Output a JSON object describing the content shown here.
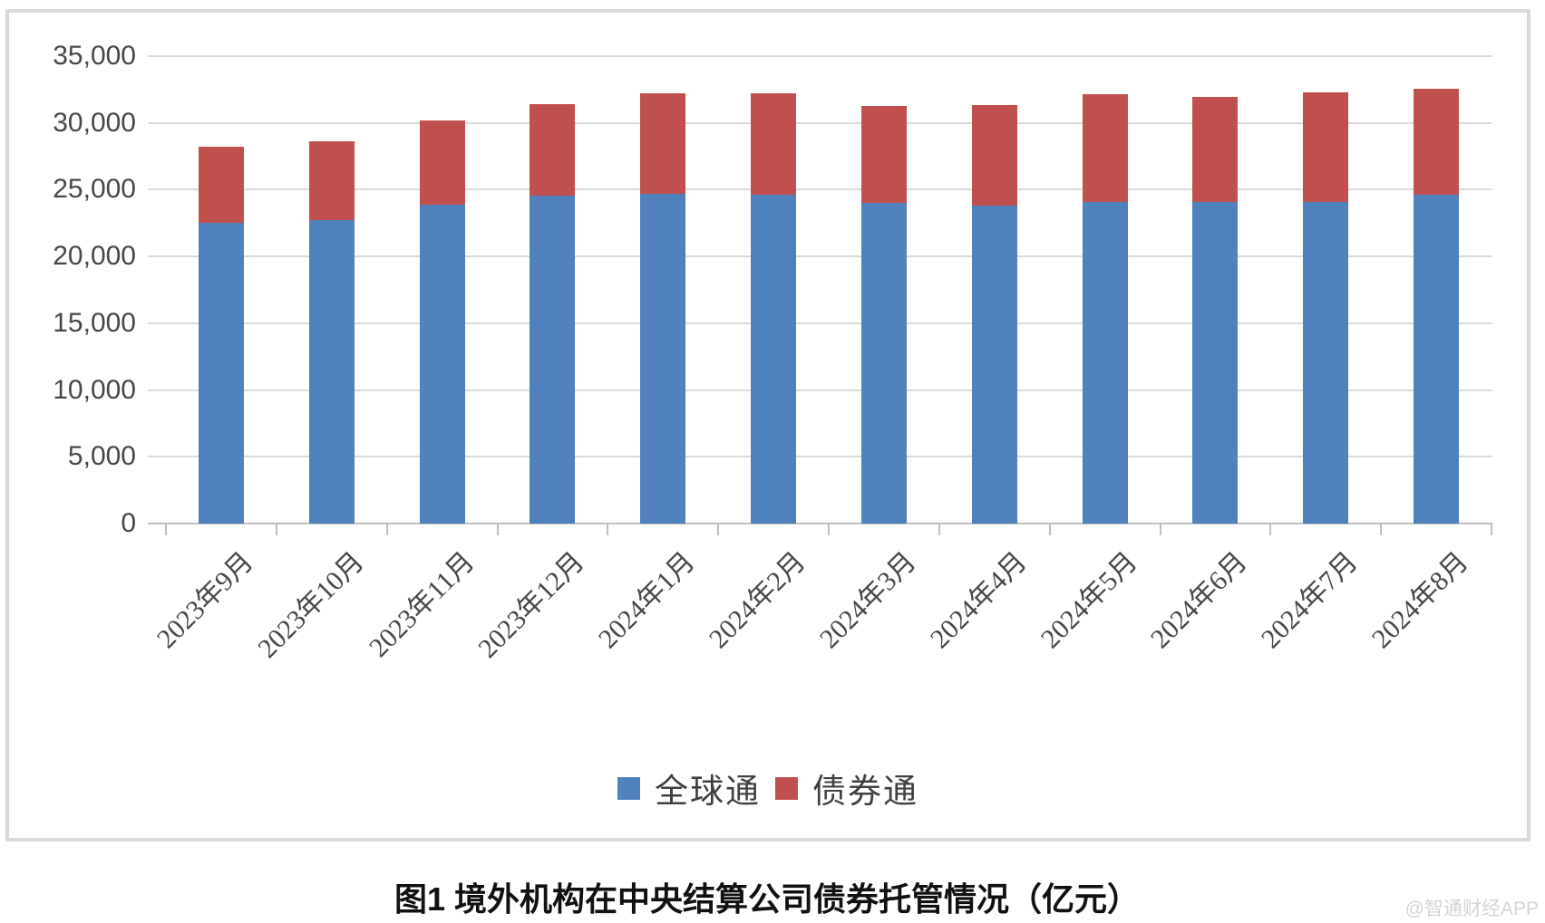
{
  "watermark": "@智通财经APP",
  "chart_data": {
    "type": "bar",
    "stacked": true,
    "title": "图1 境外机构在中央结算公司债券托管情况（亿元）",
    "xlabel": "",
    "ylabel": "",
    "categories": [
      "2023年9月",
      "2023年10月",
      "2023年11月",
      "2023年12月",
      "2024年1月",
      "2024年2月",
      "2024年3月",
      "2024年4月",
      "2024年5月",
      "2024年6月",
      "2024年7月",
      "2024年8月"
    ],
    "series": [
      {
        "name": "全球通",
        "color": "#4f81bd",
        "values": [
          22500,
          22700,
          23900,
          24550,
          24700,
          24650,
          24000,
          23800,
          24100,
          24100,
          24100,
          24650
        ]
      },
      {
        "name": "债券通",
        "color": "#c0504d",
        "values": [
          5750,
          5900,
          6300,
          6850,
          7500,
          7550,
          7250,
          7550,
          8050,
          7850,
          8200,
          7900
        ]
      }
    ],
    "ylim": [
      0,
      35000
    ],
    "ytick_interval": 5000,
    "ytick_labels": [
      "0",
      "5,000",
      "10,000",
      "15,000",
      "20,000",
      "25,000",
      "30,000",
      "35,000"
    ],
    "grid": true,
    "legend_position": "bottom",
    "xtick_rotation_deg": 45
  }
}
